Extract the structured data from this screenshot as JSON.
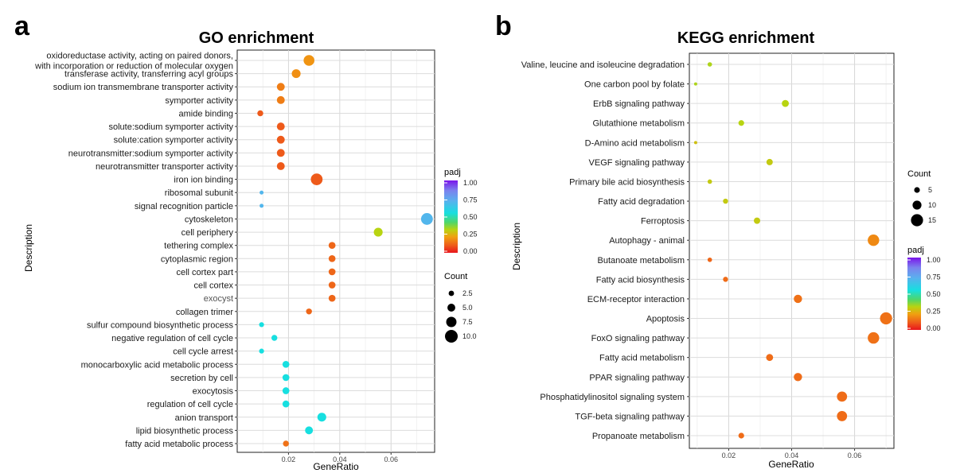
{
  "chart_data": [
    {
      "panel": "a",
      "type": "scatter",
      "title": "GO enrichment",
      "xlabel": "GeneRatio",
      "ylabel": "Description",
      "xlim": [
        0.0,
        0.077
      ],
      "xticks": [
        {
          "v": 0.02,
          "label": "0.02"
        },
        {
          "v": 0.04,
          "label": "0.04"
        },
        {
          "v": 0.06,
          "label": "0.06"
        }
      ],
      "grid": true,
      "legend_position": "right",
      "color_legend": {
        "title": "padj",
        "ticks": [
          {
            "v": 1.0,
            "label": "1.00"
          },
          {
            "v": 0.75,
            "label": "0.75"
          },
          {
            "v": 0.5,
            "label": "0.50"
          },
          {
            "v": 0.25,
            "label": "0.25"
          },
          {
            "v": 0.0,
            "label": "0.00"
          }
        ]
      },
      "size_legend": {
        "title": "Count",
        "items": [
          {
            "v": 2.5,
            "label": "2.5"
          },
          {
            "v": 5.0,
            "label": "5.0"
          },
          {
            "v": 7.5,
            "label": "7.5"
          },
          {
            "v": 10.0,
            "label": "10.0"
          }
        ]
      },
      "size_range": [
        1,
        10
      ],
      "points": [
        {
          "label": "oxidoreductase activity, acting on paired donors,\nwith incorporation or reduction of molecular oxygen",
          "x": 0.028,
          "count": 8,
          "padj": 0.2
        },
        {
          "label": "transferase activity, transferring acyl groups",
          "x": 0.023,
          "count": 6,
          "padj": 0.19
        },
        {
          "label": "sodium ion transmembrane transporter activity",
          "x": 0.017,
          "count": 5,
          "padj": 0.16
        },
        {
          "label": "symporter activity",
          "x": 0.017,
          "count": 5,
          "padj": 0.16
        },
        {
          "label": "amide binding",
          "x": 0.009,
          "count": 3,
          "padj": 0.1
        },
        {
          "label": "solute:sodium symporter activity",
          "x": 0.017,
          "count": 5,
          "padj": 0.1
        },
        {
          "label": "solute:cation symporter activity",
          "x": 0.017,
          "count": 5,
          "padj": 0.1
        },
        {
          "label": "neurotransmitter:sodium symporter activity",
          "x": 0.017,
          "count": 5,
          "padj": 0.1
        },
        {
          "label": "neurotransmitter transporter activity",
          "x": 0.017,
          "count": 5,
          "padj": 0.1
        },
        {
          "label": "iron ion binding",
          "x": 0.031,
          "count": 9,
          "padj": 0.1
        },
        {
          "label": "ribosomal subunit",
          "x": 0.0095,
          "count": 1,
          "padj": 0.7
        },
        {
          "label": "signal recognition particle",
          "x": 0.0095,
          "count": 1,
          "padj": 0.7
        },
        {
          "label": "cytoskeleton",
          "x": 0.074,
          "count": 9,
          "padj": 0.7
        },
        {
          "label": "cell periphery",
          "x": 0.055,
          "count": 6,
          "padj": 0.32
        },
        {
          "label": "tethering complex",
          "x": 0.037,
          "count": 4,
          "padj": 0.12
        },
        {
          "label": "cytoplasmic region",
          "x": 0.037,
          "count": 4,
          "padj": 0.12
        },
        {
          "label": "cell cortex part",
          "x": 0.037,
          "count": 4,
          "padj": 0.12
        },
        {
          "label": "cell cortex",
          "x": 0.037,
          "count": 4,
          "padj": 0.12
        },
        {
          "label": "exocyst",
          "x": 0.037,
          "count": 4,
          "padj": 0.12
        },
        {
          "label": "collagen trimer",
          "x": 0.028,
          "count": 3,
          "padj": 0.12
        },
        {
          "label": "sulfur compound biosynthetic process",
          "x": 0.0095,
          "count": 2,
          "padj": 0.55
        },
        {
          "label": "negative regulation of cell cycle",
          "x": 0.0145,
          "count": 3,
          "padj": 0.55
        },
        {
          "label": "cell cycle arrest",
          "x": 0.0095,
          "count": 2,
          "padj": 0.55
        },
        {
          "label": "monocarboxylic acid metabolic process",
          "x": 0.019,
          "count": 4,
          "padj": 0.55
        },
        {
          "label": "secretion by cell",
          "x": 0.019,
          "count": 4,
          "padj": 0.55
        },
        {
          "label": "exocytosis",
          "x": 0.019,
          "count": 4,
          "padj": 0.55
        },
        {
          "label": "regulation of cell cycle",
          "x": 0.019,
          "count": 4,
          "padj": 0.55
        },
        {
          "label": "anion transport",
          "x": 0.033,
          "count": 6,
          "padj": 0.55
        },
        {
          "label": "lipid biosynthetic process",
          "x": 0.028,
          "count": 5,
          "padj": 0.55
        },
        {
          "label": "fatty acid metabolic process",
          "x": 0.019,
          "count": 3,
          "padj": 0.14
        }
      ]
    },
    {
      "panel": "b",
      "type": "scatter",
      "title": "KEGG enrichment",
      "xlabel": "GeneRatio",
      "ylabel": "Description",
      "xlim": [
        0.0075,
        0.0725
      ],
      "xticks": [
        {
          "v": 0.02,
          "label": "0.02"
        },
        {
          "v": 0.04,
          "label": "0.04"
        },
        {
          "v": 0.06,
          "label": "0.06"
        }
      ],
      "grid": true,
      "legend_position": "right",
      "size_legend": {
        "title": "Count",
        "items": [
          {
            "v": 5,
            "label": "5"
          },
          {
            "v": 10,
            "label": "10"
          },
          {
            "v": 15,
            "label": "15"
          }
        ]
      },
      "color_legend": {
        "title": "padj",
        "ticks": [
          {
            "v": 1.0,
            "label": "1.00"
          },
          {
            "v": 0.75,
            "label": "0.75"
          },
          {
            "v": 0.5,
            "label": "0.50"
          },
          {
            "v": 0.25,
            "label": "0.25"
          },
          {
            "v": 0.0,
            "label": "0.00"
          }
        ]
      },
      "size_range": [
        1,
        16
      ],
      "points": [
        {
          "label": "Valine, leucine and isoleucine degradation",
          "x": 0.014,
          "count": 3,
          "padj": 0.33
        },
        {
          "label": "One carbon pool by folate",
          "x": 0.0095,
          "count": 1,
          "padj": 0.33
        },
        {
          "label": "ErbB signaling pathway",
          "x": 0.038,
          "count": 7,
          "padj": 0.32
        },
        {
          "label": "Glutathione metabolism",
          "x": 0.024,
          "count": 5,
          "padj": 0.32
        },
        {
          "label": "D-Amino acid metabolism",
          "x": 0.0095,
          "count": 1,
          "padj": 0.28
        },
        {
          "label": "VEGF signaling pathway",
          "x": 0.033,
          "count": 6,
          "padj": 0.3
        },
        {
          "label": "Primary bile acid biosynthesis",
          "x": 0.014,
          "count": 3,
          "padj": 0.3
        },
        {
          "label": "Fatty acid degradation",
          "x": 0.019,
          "count": 4,
          "padj": 0.3
        },
        {
          "label": "Ferroptosis",
          "x": 0.029,
          "count": 6,
          "padj": 0.3
        },
        {
          "label": "Autophagy - animal",
          "x": 0.066,
          "count": 14,
          "padj": 0.18
        },
        {
          "label": "Butanoate metabolism",
          "x": 0.014,
          "count": 3,
          "padj": 0.12
        },
        {
          "label": "Fatty acid biosynthesis",
          "x": 0.019,
          "count": 4,
          "padj": 0.13
        },
        {
          "label": "ECM-receptor interaction",
          "x": 0.042,
          "count": 9,
          "padj": 0.14
        },
        {
          "label": "Apoptosis",
          "x": 0.07,
          "count": 15,
          "padj": 0.14
        },
        {
          "label": "FoxO signaling pathway",
          "x": 0.066,
          "count": 14,
          "padj": 0.14
        },
        {
          "label": "Fatty acid metabolism",
          "x": 0.033,
          "count": 7,
          "padj": 0.13
        },
        {
          "label": "PPAR signaling pathway",
          "x": 0.042,
          "count": 9,
          "padj": 0.13
        },
        {
          "label": "Phosphatidylinositol signaling system",
          "x": 0.056,
          "count": 12,
          "padj": 0.13
        },
        {
          "label": "TGF-beta signaling pathway",
          "x": 0.056,
          "count": 12,
          "padj": 0.13
        },
        {
          "label": "Propanoate metabolism",
          "x": 0.024,
          "count": 5,
          "padj": 0.13
        }
      ]
    }
  ]
}
